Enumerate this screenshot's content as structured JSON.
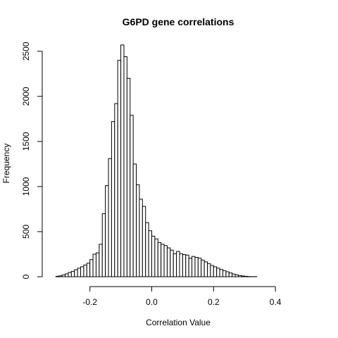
{
  "chart_data": {
    "type": "bar",
    "title": "G6PD gene correlations",
    "xlabel": "Correlation Value",
    "ylabel": "Frequency",
    "xlim": [
      -0.32,
      0.5
    ],
    "ylim": [
      0,
      2600
    ],
    "x_ticks": [
      -0.2,
      0.0,
      0.2,
      0.4
    ],
    "x_tick_labels": [
      "-0.2",
      "0.0",
      "0.2",
      "0.4"
    ],
    "y_ticks": [
      0,
      500,
      1000,
      1500,
      2000,
      2500
    ],
    "y_tick_labels": [
      "0",
      "500",
      "1000",
      "1500",
      "2000",
      "2500"
    ],
    "bin_width": 0.01,
    "bin_start": -0.31,
    "values": [
      5,
      10,
      20,
      32,
      48,
      60,
      78,
      95,
      110,
      130,
      150,
      190,
      250,
      265,
      360,
      700,
      1010,
      1310,
      1720,
      1920,
      2400,
      2570,
      2440,
      2200,
      1790,
      1250,
      1020,
      860,
      780,
      600,
      510,
      450,
      420,
      380,
      360,
      345,
      320,
      295,
      255,
      280,
      255,
      245,
      240,
      205,
      225,
      215,
      205,
      185,
      165,
      145,
      125,
      110,
      95,
      80,
      68,
      55,
      42,
      30,
      22,
      14,
      8,
      5,
      2,
      1,
      1,
      0,
      0,
      0,
      0,
      0,
      0,
      0,
      0,
      0,
      0,
      0,
      0,
      0,
      0,
      0,
      0,
      0
    ],
    "grid": false,
    "legend": "none"
  }
}
